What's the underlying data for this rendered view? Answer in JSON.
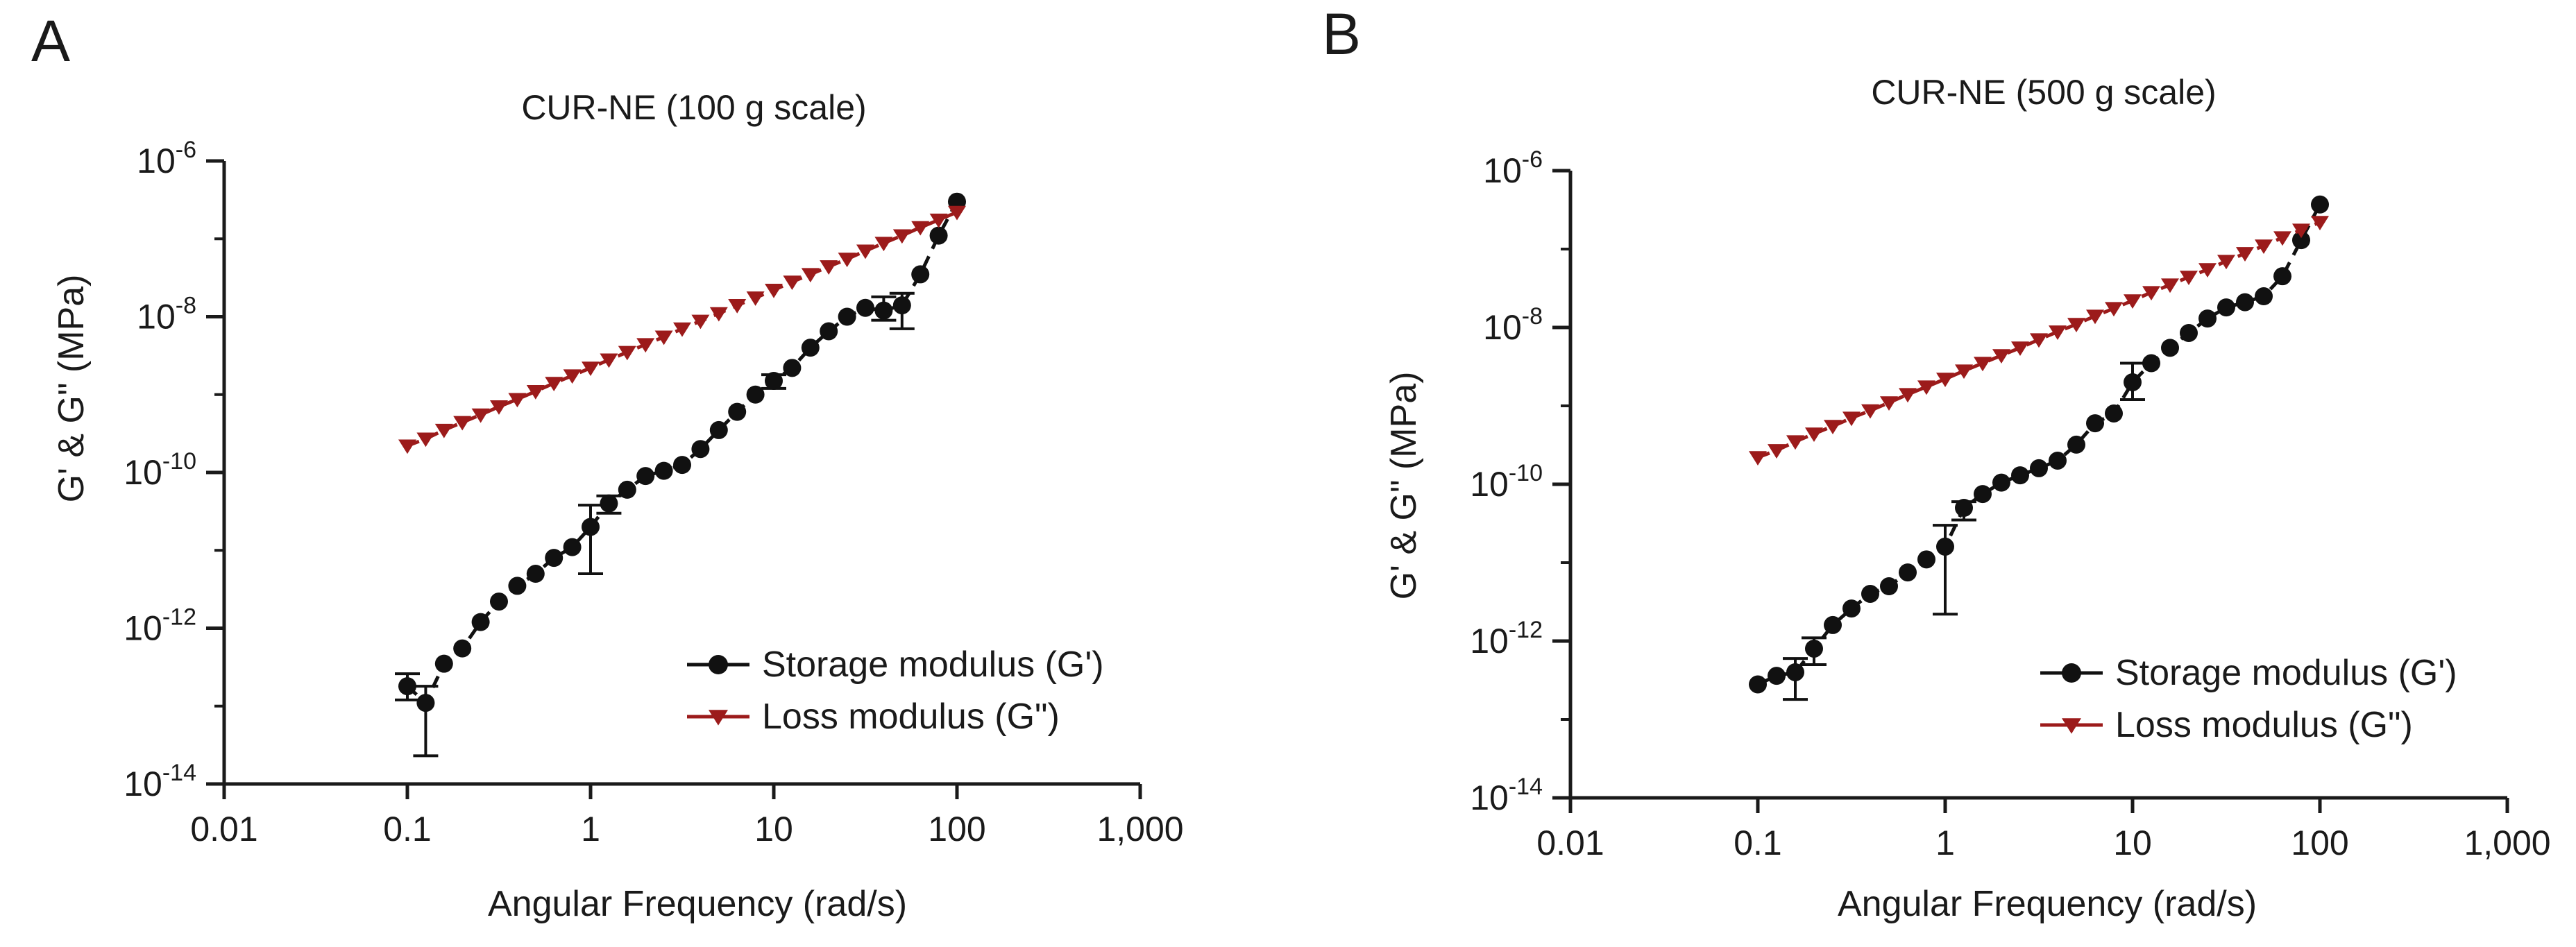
{
  "figure": {
    "panels": [
      "A",
      "B"
    ]
  },
  "chart_data": [
    {
      "panel": "A",
      "type": "scatter",
      "title": "CUR-NE (100 g scale)",
      "xlabel": "Angular Frequency (rad/s)",
      "ylabel": "G' & G\" (MPa)",
      "xscale": "log",
      "yscale": "log",
      "xlim": [
        0.01,
        1000
      ],
      "ylim": [
        1e-14,
        1e-06
      ],
      "x_ticks": [
        {
          "value": 0.01,
          "label": "0.01"
        },
        {
          "value": 0.1,
          "label": "0.1"
        },
        {
          "value": 1,
          "label": "1"
        },
        {
          "value": 10,
          "label": "10"
        },
        {
          "value": 100,
          "label": "100"
        },
        {
          "value": 1000,
          "label": "1,000"
        }
      ],
      "y_ticks": [
        {
          "value": 1e-06,
          "base": "10",
          "exp": "-6"
        },
        {
          "value": 1e-08,
          "base": "10",
          "exp": "-8"
        },
        {
          "value": 1e-10,
          "base": "10",
          "exp": "-10"
        },
        {
          "value": 1e-12,
          "base": "10",
          "exp": "-12"
        },
        {
          "value": 1e-14,
          "base": "10",
          "exp": "-14"
        }
      ],
      "legend_position": "bottom-right",
      "series": [
        {
          "name": "Storage modulus (G')",
          "color": "#111111",
          "marker": "circle",
          "line": "dashed",
          "x": [
            0.1,
            0.1259,
            0.1585,
            0.1995,
            0.2512,
            0.3162,
            0.3981,
            0.5012,
            0.631,
            0.7943,
            1.0,
            1.259,
            1.585,
            1.995,
            2.512,
            3.162,
            3.981,
            5.012,
            6.31,
            7.943,
            10.0,
            12.59,
            15.85,
            19.95,
            25.12,
            31.62,
            39.81,
            50.12,
            63.1,
            79.43,
            100.0
          ],
          "y": [
            1.8e-13,
            1.1e-13,
            3.5e-13,
            5.5e-13,
            1.2e-12,
            2.2e-12,
            3.5e-12,
            5e-12,
            8e-12,
            1.1e-11,
            2e-11,
            4e-11,
            6e-11,
            9e-11,
            1.05e-10,
            1.25e-10,
            2e-10,
            3.5e-10,
            6e-10,
            1e-09,
            1.5e-09,
            2.2e-09,
            4e-09,
            6.5e-09,
            1e-08,
            1.3e-08,
            1.2e-08,
            1.4e-08,
            3.5e-08,
            1.1e-07,
            3e-07
          ],
          "errors": [
            {
              "x": 0.1,
              "low": 1.2e-13,
              "high": 2.6e-13
            },
            {
              "x": 0.1259,
              "low": 2.3e-14,
              "high": 1.8e-13
            },
            {
              "x": 1.0,
              "low": 5e-12,
              "high": 3.8e-11
            },
            {
              "x": 1.259,
              "low": 3e-11,
              "high": 5e-11
            },
            {
              "x": 10.0,
              "low": 1.2e-09,
              "high": 1.8e-09
            },
            {
              "x": 39.81,
              "low": 9e-09,
              "high": 1.8e-08
            },
            {
              "x": 50.12,
              "low": 7e-09,
              "high": 2e-08
            }
          ]
        },
        {
          "name": "Loss modulus (G\")",
          "color": "#9c1b1b",
          "marker": "triangle-down",
          "line": "dashed",
          "x": [
            0.1,
            0.1259,
            0.1585,
            0.1995,
            0.2512,
            0.3162,
            0.3981,
            0.5012,
            0.631,
            0.7943,
            1.0,
            1.259,
            1.585,
            1.995,
            2.512,
            3.162,
            3.981,
            5.012,
            6.31,
            7.943,
            10.0,
            12.59,
            15.85,
            19.95,
            25.12,
            31.62,
            39.81,
            50.12,
            63.1,
            79.43,
            100.0
          ],
          "y": [
            2.2e-10,
            2.7e-10,
            3.5e-10,
            4.4e-10,
            5.5e-10,
            7e-10,
            8.7e-10,
            1.1e-09,
            1.4e-09,
            1.75e-09,
            2.2e-09,
            2.8e-09,
            3.5e-09,
            4.4e-09,
            5.5e-09,
            7e-09,
            8.8e-09,
            1.1e-08,
            1.4e-08,
            1.75e-08,
            2.2e-08,
            2.8e-08,
            3.5e-08,
            4.4e-08,
            5.5e-08,
            7e-08,
            8.8e-08,
            1.1e-07,
            1.4e-07,
            1.75e-07,
            2.2e-07
          ]
        }
      ]
    },
    {
      "panel": "B",
      "type": "scatter",
      "title": "CUR-NE (500 g scale)",
      "xlabel": "Angular Frequency (rad/s)",
      "ylabel": "G' & G\" (MPa)",
      "xscale": "log",
      "yscale": "log",
      "xlim": [
        0.01,
        1000
      ],
      "ylim": [
        1e-14,
        1e-06
      ],
      "x_ticks": [
        {
          "value": 0.01,
          "label": "0.01"
        },
        {
          "value": 0.1,
          "label": "0.1"
        },
        {
          "value": 1,
          "label": "1"
        },
        {
          "value": 10,
          "label": "10"
        },
        {
          "value": 100,
          "label": "100"
        },
        {
          "value": 1000,
          "label": "1,000"
        }
      ],
      "y_ticks": [
        {
          "value": 1e-06,
          "base": "10",
          "exp": "-6"
        },
        {
          "value": 1e-08,
          "base": "10",
          "exp": "-8"
        },
        {
          "value": 1e-10,
          "base": "10",
          "exp": "-10"
        },
        {
          "value": 1e-12,
          "base": "10",
          "exp": "-12"
        },
        {
          "value": 1e-14,
          "base": "10",
          "exp": "-14"
        }
      ],
      "legend_position": "bottom-right",
      "series": [
        {
          "name": "Storage modulus (G')",
          "color": "#111111",
          "marker": "circle",
          "line": "dashed",
          "x": [
            0.1,
            0.1259,
            0.1585,
            0.1995,
            0.2512,
            0.3162,
            0.3981,
            0.5012,
            0.631,
            0.7943,
            1.0,
            1.259,
            1.585,
            1.995,
            2.512,
            3.162,
            3.981,
            5.012,
            6.31,
            7.943,
            10.0,
            12.59,
            15.85,
            19.95,
            25.12,
            31.62,
            39.81,
            50.12,
            63.1,
            79.43,
            100.0
          ],
          "y": [
            2.8e-13,
            3.6e-13,
            4e-13,
            8e-13,
            1.6e-12,
            2.6e-12,
            4e-12,
            5e-12,
            7.5e-12,
            1.1e-11,
            1.6e-11,
            5e-11,
            7.5e-11,
            1.05e-10,
            1.3e-10,
            1.6e-10,
            2e-10,
            3.2e-10,
            6e-10,
            8e-10,
            2e-09,
            3.5e-09,
            5.5e-09,
            8.5e-09,
            1.3e-08,
            1.8e-08,
            2.1e-08,
            2.5e-08,
            4.5e-08,
            1.3e-07,
            3.7e-07
          ],
          "errors": [
            {
              "x": 0.1585,
              "low": 1.8e-13,
              "high": 6e-13
            },
            {
              "x": 0.1995,
              "low": 5e-13,
              "high": 1.1e-12
            },
            {
              "x": 1.0,
              "low": 2.2e-12,
              "high": 3e-11
            },
            {
              "x": 1.259,
              "low": 3.5e-11,
              "high": 6e-11
            },
            {
              "x": 10.0,
              "low": 1.2e-09,
              "high": 3.5e-09
            }
          ]
        },
        {
          "name": "Loss modulus (G\")",
          "color": "#9c1b1b",
          "marker": "triangle-down",
          "line": "dashed",
          "x": [
            0.1,
            0.1259,
            0.1585,
            0.1995,
            0.2512,
            0.3162,
            0.3981,
            0.5012,
            0.631,
            0.7943,
            1.0,
            1.259,
            1.585,
            1.995,
            2.512,
            3.162,
            3.981,
            5.012,
            6.31,
            7.943,
            10.0,
            12.59,
            15.85,
            19.95,
            25.12,
            31.62,
            39.81,
            50.12,
            63.1,
            79.43,
            100.0
          ],
          "y": [
            2.2e-10,
            2.7e-10,
            3.5e-10,
            4.4e-10,
            5.5e-10,
            7e-10,
            8.7e-10,
            1.1e-09,
            1.4e-09,
            1.75e-09,
            2.2e-09,
            2.8e-09,
            3.5e-09,
            4.4e-09,
            5.5e-09,
            7e-09,
            8.8e-09,
            1.1e-08,
            1.4e-08,
            1.75e-08,
            2.2e-08,
            2.8e-08,
            3.5e-08,
            4.4e-08,
            5.5e-08,
            7e-08,
            8.8e-08,
            1.1e-07,
            1.4e-07,
            1.75e-07,
            2.2e-07
          ]
        }
      ]
    }
  ]
}
